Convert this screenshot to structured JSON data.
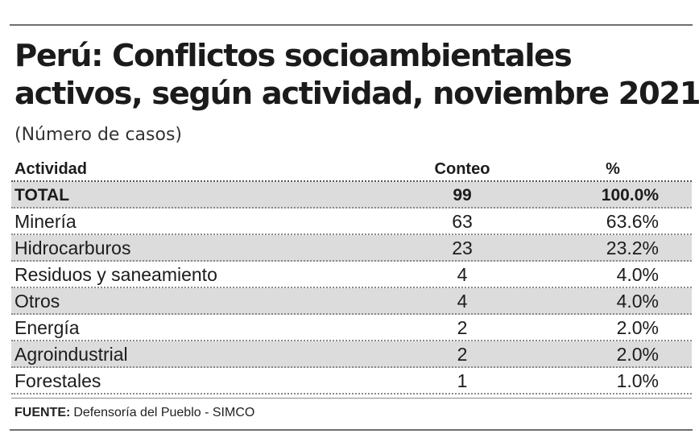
{
  "chart_data": {
    "type": "table",
    "title_lines": [
      "Perú: Conflictos socioambientales",
      "activos, según actividad, noviembre 2021"
    ],
    "subtitle": "(Número de casos)",
    "columns": [
      "Actividad",
      "Conteo",
      "%"
    ],
    "rows": [
      {
        "actividad": "TOTAL",
        "conteo": 99,
        "pct": "100.0%"
      },
      {
        "actividad": "Minería",
        "conteo": 63,
        "pct": "63.6%"
      },
      {
        "actividad": "Hidrocarburos",
        "conteo": 23,
        "pct": "23.2%"
      },
      {
        "actividad": "Residuos y saneamiento",
        "conteo": 4,
        "pct": "4.0%"
      },
      {
        "actividad": "Otros",
        "conteo": 4,
        "pct": "4.0%"
      },
      {
        "actividad": "Energía",
        "conteo": 2,
        "pct": "2.0%"
      },
      {
        "actividad": "Agroindustrial",
        "conteo": 2,
        "pct": "2.0%"
      },
      {
        "actividad": "Forestales",
        "conteo": 1,
        "pct": "1.0%"
      }
    ],
    "source_label": "FUENTE:",
    "source_text": "Defensoría del Pueblo - SIMCO",
    "row_shading_color": "#dcdcdc"
  }
}
